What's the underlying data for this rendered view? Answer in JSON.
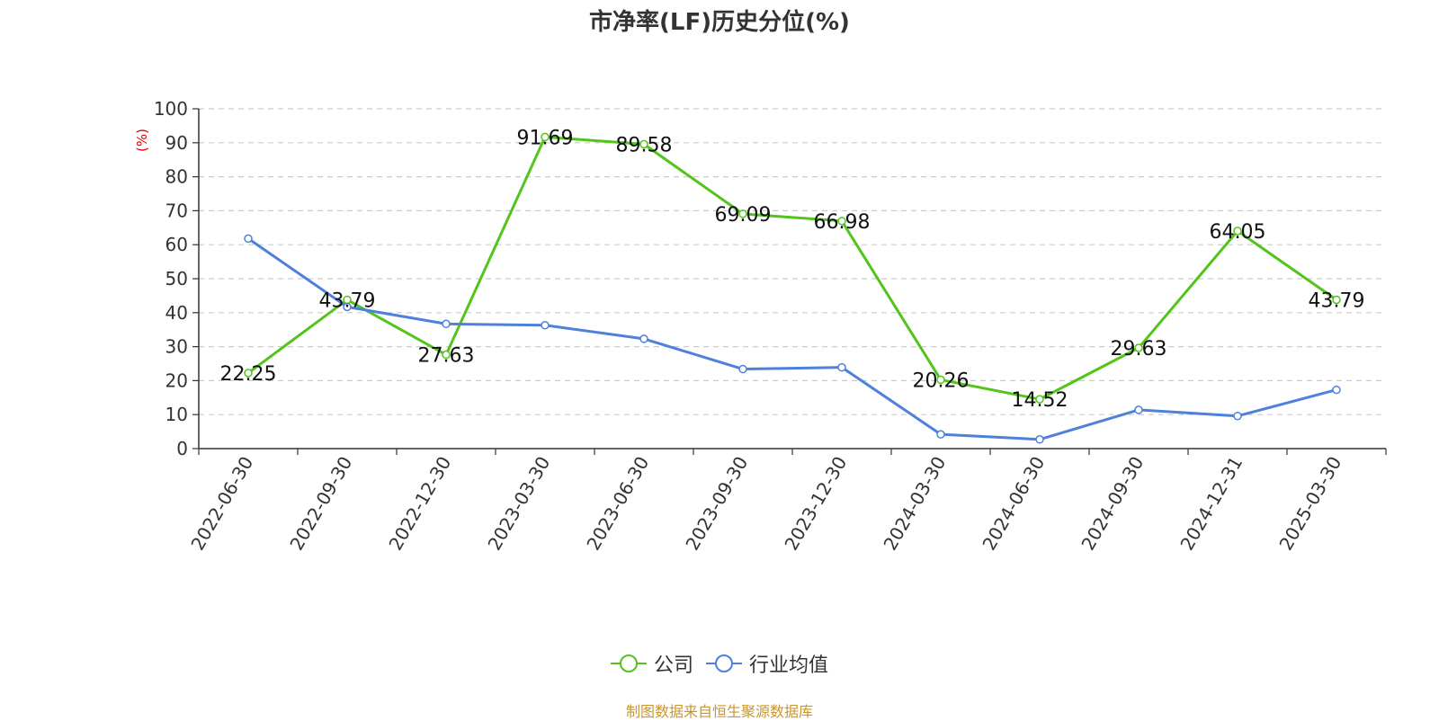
{
  "chart_data": {
    "type": "line",
    "title": "市净率(LF)历史分位(%)",
    "ylabel": "(%)",
    "xlabel": "",
    "ylim": [
      0,
      100
    ],
    "yticks": [
      0,
      10,
      20,
      30,
      40,
      50,
      60,
      70,
      80,
      90,
      100
    ],
    "categories": [
      "2022-06-30",
      "2022-09-30",
      "2022-12-30",
      "2023-03-30",
      "2023-06-30",
      "2023-09-30",
      "2023-12-30",
      "2024-03-30",
      "2024-06-30",
      "2024-09-30",
      "2024-12-31",
      "2025-03-30"
    ],
    "grid": true,
    "legend_position": "bottom",
    "series": [
      {
        "name": "公司",
        "color": "#52c41a",
        "labels": true,
        "values": [
          22.25,
          43.79,
          27.63,
          91.69,
          89.58,
          69.09,
          66.98,
          20.26,
          14.52,
          29.63,
          64.05,
          43.79
        ]
      },
      {
        "name": "行业均值",
        "color": "#4e80dc",
        "labels": false,
        "values": [
          61.8,
          41.7,
          36.7,
          36.3,
          32.3,
          23.4,
          23.9,
          4.2,
          2.7,
          11.4,
          9.6,
          17.3
        ]
      }
    ]
  },
  "source": "制图数据来自恒生聚源数据库"
}
